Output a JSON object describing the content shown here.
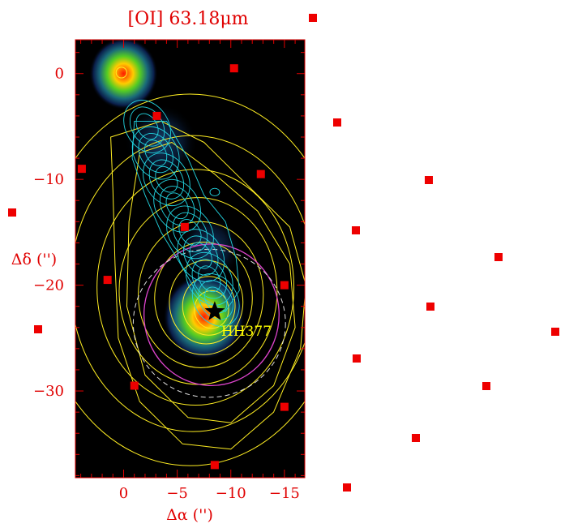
{
  "chart_data": {
    "type": "heatmap",
    "title": "[OI] 63.18μm",
    "xlabel": "Δα ('')",
    "ylabel": "Δδ ('')",
    "xlim": [
      4.5,
      -16.9
    ],
    "ylim": [
      -38.2,
      3.2
    ],
    "x_ticks": [
      0,
      -5,
      -10,
      -15
    ],
    "y_ticks": [
      0,
      -10,
      -20,
      -30
    ],
    "x_tick_labels": [
      "0",
      "−5",
      "−10",
      "−15"
    ],
    "y_tick_labels": [
      "0",
      "−10",
      "−20",
      "−30"
    ],
    "colormap": "black-blue-green-yellow-red",
    "emission_peaks": [
      {
        "x": 0.0,
        "y": 0.0,
        "intensity": 1.0
      },
      {
        "x": -7.5,
        "y": -23.0,
        "intensity": 1.0
      },
      {
        "x": -8.0,
        "y": -16.5,
        "intensity": 0.35
      },
      {
        "x": -3.5,
        "y": -6.5,
        "intensity": 0.3
      }
    ],
    "source": {
      "name": "HH377",
      "x": -8.5,
      "y": -22.5,
      "marker": "star"
    },
    "pointing_positions": [
      {
        "x": -8.5,
        "y": -37.0
      },
      {
        "x": -15.0,
        "y": -31.5
      },
      {
        "x": -1.0,
        "y": -29.5
      },
      {
        "x": 1.5,
        "y": -19.5
      },
      {
        "x": -15.0,
        "y": -20.0
      },
      {
        "x": -5.7,
        "y": -14.5
      },
      {
        "x": 3.9,
        "y": -9.0
      },
      {
        "x": -12.8,
        "y": -9.5
      },
      {
        "x": -3.1,
        "y": -4.0
      },
      {
        "x": -10.3,
        "y": 0.5
      }
    ],
    "cyan_contour_color": "#22d4e0",
    "yellow_contour_color": "#ffee22",
    "magenta_contour_color": "#dd44cc",
    "marker_color": "#ee0000"
  }
}
